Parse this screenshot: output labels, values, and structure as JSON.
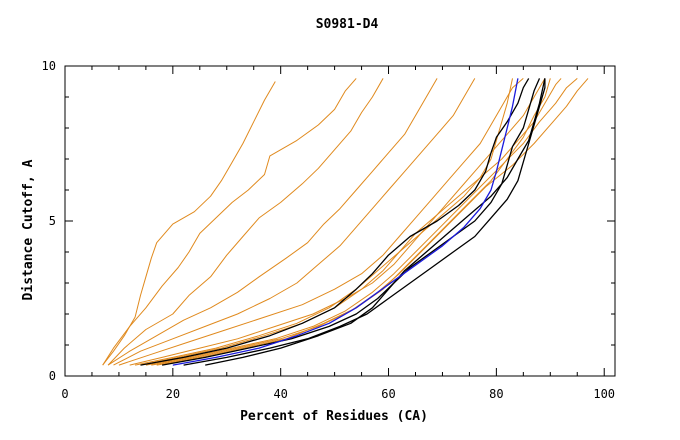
{
  "chart_data": {
    "type": "line",
    "title": "S0981-D4",
    "xlabel": "Percent of Residues (CA)",
    "ylabel": "Distance Cutoff, A",
    "xlim": [
      0,
      102
    ],
    "ylim": [
      0,
      10
    ],
    "xticks": [
      0,
      20,
      40,
      60,
      80,
      100
    ],
    "yticks": [
      0,
      5,
      10
    ],
    "grid": false,
    "legend": "none",
    "colors": {
      "orange": "#e08a1e",
      "black": "#000000",
      "blue": "#1a1adc"
    },
    "series": [
      {
        "color": "orange",
        "points": [
          [
            7,
            0.35
          ],
          [
            9,
            0.8
          ],
          [
            11,
            1.3
          ],
          [
            13,
            1.9
          ],
          [
            14,
            2.6
          ],
          [
            15,
            3.2
          ],
          [
            16,
            3.8
          ],
          [
            17,
            4.3
          ],
          [
            20,
            4.9
          ],
          [
            24,
            5.3
          ],
          [
            27,
            5.8
          ],
          [
            29,
            6.3
          ],
          [
            31,
            6.9
          ],
          [
            33,
            7.5
          ],
          [
            35,
            8.2
          ],
          [
            37,
            8.9
          ],
          [
            39,
            9.5
          ]
        ]
      },
      {
        "color": "orange",
        "points": [
          [
            7,
            0.35
          ],
          [
            9,
            0.9
          ],
          [
            12,
            1.6
          ],
          [
            15,
            2.2
          ],
          [
            18,
            2.9
          ],
          [
            21,
            3.5
          ],
          [
            23,
            4.0
          ],
          [
            25,
            4.6
          ],
          [
            28,
            5.1
          ],
          [
            31,
            5.6
          ],
          [
            34,
            6.0
          ],
          [
            37,
            6.5
          ],
          [
            38,
            7.1
          ],
          [
            43,
            7.6
          ],
          [
            47,
            8.1
          ],
          [
            50,
            8.6
          ],
          [
            52,
            9.2
          ],
          [
            54,
            9.6
          ]
        ]
      },
      {
        "color": "orange",
        "points": [
          [
            8,
            0.35
          ],
          [
            11,
            0.9
          ],
          [
            15,
            1.5
          ],
          [
            20,
            2.0
          ],
          [
            23,
            2.6
          ],
          [
            27,
            3.2
          ],
          [
            30,
            3.9
          ],
          [
            33,
            4.5
          ],
          [
            36,
            5.1
          ],
          [
            40,
            5.6
          ],
          [
            44,
            6.2
          ],
          [
            47,
            6.7
          ],
          [
            50,
            7.3
          ],
          [
            53,
            7.9
          ],
          [
            55,
            8.5
          ],
          [
            57,
            9.0
          ],
          [
            59,
            9.6
          ]
        ]
      },
      {
        "color": "orange",
        "points": [
          [
            8,
            0.35
          ],
          [
            12,
            0.8
          ],
          [
            17,
            1.3
          ],
          [
            22,
            1.8
          ],
          [
            27,
            2.2
          ],
          [
            32,
            2.7
          ],
          [
            36,
            3.2
          ],
          [
            41,
            3.8
          ],
          [
            45,
            4.3
          ],
          [
            48,
            4.9
          ],
          [
            51,
            5.4
          ],
          [
            54,
            6.0
          ],
          [
            57,
            6.6
          ],
          [
            60,
            7.2
          ],
          [
            63,
            7.8
          ],
          [
            65,
            8.4
          ],
          [
            67,
            9.0
          ],
          [
            69,
            9.6
          ]
        ]
      },
      {
        "color": "orange",
        "points": [
          [
            9,
            0.35
          ],
          [
            14,
            0.8
          ],
          [
            20,
            1.2
          ],
          [
            26,
            1.6
          ],
          [
            32,
            2.0
          ],
          [
            38,
            2.5
          ],
          [
            43,
            3.0
          ],
          [
            47,
            3.6
          ],
          [
            51,
            4.2
          ],
          [
            54,
            4.8
          ],
          [
            57,
            5.4
          ],
          [
            60,
            6.0
          ],
          [
            63,
            6.6
          ],
          [
            66,
            7.2
          ],
          [
            69,
            7.8
          ],
          [
            72,
            8.4
          ],
          [
            74,
            9.0
          ],
          [
            76,
            9.6
          ]
        ]
      },
      {
        "color": "orange",
        "points": [
          [
            10,
            0.35
          ],
          [
            16,
            0.7
          ],
          [
            23,
            1.1
          ],
          [
            30,
            1.5
          ],
          [
            37,
            1.9
          ],
          [
            44,
            2.3
          ],
          [
            50,
            2.8
          ],
          [
            55,
            3.3
          ],
          [
            59,
            3.9
          ],
          [
            62,
            4.5
          ],
          [
            65,
            5.1
          ],
          [
            68,
            5.7
          ],
          [
            71,
            6.3
          ],
          [
            74,
            6.9
          ],
          [
            77,
            7.5
          ],
          [
            79,
            8.1
          ],
          [
            81,
            8.7
          ],
          [
            83,
            9.3
          ],
          [
            85,
            9.6
          ]
        ]
      },
      {
        "color": "orange",
        "points": [
          [
            12,
            0.35
          ],
          [
            18,
            0.6
          ],
          [
            25,
            0.9
          ],
          [
            32,
            1.2
          ],
          [
            39,
            1.6
          ],
          [
            46,
            2.0
          ],
          [
            52,
            2.5
          ],
          [
            57,
            3.0
          ],
          [
            61,
            3.6
          ],
          [
            64,
            4.2
          ],
          [
            67,
            4.8
          ],
          [
            70,
            5.4
          ],
          [
            73,
            6.0
          ],
          [
            76,
            6.6
          ],
          [
            79,
            7.2
          ],
          [
            82,
            7.8
          ],
          [
            85,
            8.4
          ],
          [
            87,
            9.0
          ],
          [
            89,
            9.6
          ]
        ]
      },
      {
        "color": "orange",
        "points": [
          [
            14,
            0.35
          ],
          [
            21,
            0.6
          ],
          [
            29,
            0.9
          ],
          [
            37,
            1.3
          ],
          [
            44,
            1.7
          ],
          [
            50,
            2.2
          ],
          [
            55,
            2.8
          ],
          [
            59,
            3.4
          ],
          [
            62,
            4.0
          ],
          [
            65,
            4.6
          ],
          [
            69,
            5.2
          ],
          [
            73,
            5.8
          ],
          [
            77,
            6.4
          ],
          [
            81,
            7.0
          ],
          [
            84,
            7.6
          ],
          [
            87,
            8.2
          ],
          [
            89,
            8.8
          ],
          [
            91,
            9.4
          ],
          [
            92,
            9.6
          ]
        ]
      },
      {
        "color": "orange",
        "points": [
          [
            15,
            0.35
          ],
          [
            23,
            0.6
          ],
          [
            31,
            0.9
          ],
          [
            39,
            1.2
          ],
          [
            46,
            1.6
          ],
          [
            52,
            2.1
          ],
          [
            57,
            2.7
          ],
          [
            61,
            3.3
          ],
          [
            65,
            4.0
          ],
          [
            69,
            4.7
          ],
          [
            73,
            5.4
          ],
          [
            77,
            6.1
          ],
          [
            81,
            6.8
          ],
          [
            85,
            7.5
          ],
          [
            88,
            8.2
          ],
          [
            91,
            8.8
          ],
          [
            93,
            9.3
          ],
          [
            95,
            9.6
          ]
        ]
      },
      {
        "color": "orange",
        "points": [
          [
            16,
            0.35
          ],
          [
            24,
            0.6
          ],
          [
            32,
            0.9
          ],
          [
            40,
            1.2
          ],
          [
            47,
            1.6
          ],
          [
            53,
            2.1
          ],
          [
            58,
            2.7
          ],
          [
            62,
            3.3
          ],
          [
            66,
            4.0
          ],
          [
            70,
            4.7
          ],
          [
            74,
            5.4
          ],
          [
            78,
            6.1
          ],
          [
            83,
            6.8
          ],
          [
            87,
            7.5
          ],
          [
            90,
            8.1
          ],
          [
            93,
            8.7
          ],
          [
            95,
            9.2
          ],
          [
            97,
            9.6
          ]
        ]
      },
      {
        "color": "orange",
        "points": [
          [
            17,
            0.35
          ],
          [
            25,
            0.6
          ],
          [
            33,
            0.9
          ],
          [
            41,
            1.2
          ],
          [
            48,
            1.7
          ],
          [
            54,
            2.2
          ],
          [
            59,
            2.8
          ],
          [
            63,
            3.5
          ],
          [
            67,
            4.2
          ],
          [
            71,
            4.9
          ],
          [
            75,
            5.6
          ],
          [
            79,
            6.3
          ],
          [
            82,
            7.0
          ],
          [
            85,
            7.7
          ],
          [
            87,
            8.4
          ],
          [
            89,
            9.0
          ],
          [
            90,
            9.6
          ]
        ]
      },
      {
        "color": "orange",
        "points": [
          [
            13,
            0.35
          ],
          [
            20,
            0.6
          ],
          [
            28,
            0.9
          ],
          [
            36,
            1.3
          ],
          [
            43,
            1.7
          ],
          [
            49,
            2.2
          ],
          [
            54,
            2.8
          ],
          [
            58,
            3.4
          ],
          [
            62,
            4.0
          ],
          [
            66,
            4.6
          ],
          [
            70,
            5.2
          ],
          [
            74,
            5.8
          ],
          [
            77,
            6.4
          ],
          [
            79,
            7.0
          ],
          [
            80,
            7.6
          ],
          [
            81,
            8.2
          ],
          [
            82,
            8.8
          ],
          [
            83,
            9.6
          ]
        ]
      },
      {
        "color": "black",
        "points": [
          [
            14,
            0.35
          ],
          [
            22,
            0.6
          ],
          [
            30,
            0.9
          ],
          [
            38,
            1.3
          ],
          [
            44,
            1.7
          ],
          [
            50,
            2.2
          ],
          [
            54,
            2.8
          ],
          [
            57,
            3.3
          ],
          [
            60,
            3.9
          ],
          [
            64,
            4.5
          ],
          [
            69,
            5.0
          ],
          [
            73,
            5.5
          ],
          [
            76,
            6.0
          ],
          [
            78,
            6.6
          ],
          [
            79,
            7.2
          ],
          [
            80,
            7.7
          ],
          [
            82,
            8.2
          ],
          [
            84,
            8.8
          ],
          [
            85,
            9.3
          ],
          [
            86,
            9.6
          ]
        ]
      },
      {
        "color": "black",
        "points": [
          [
            18,
            0.35
          ],
          [
            26,
            0.6
          ],
          [
            34,
            0.9
          ],
          [
            42,
            1.2
          ],
          [
            49,
            1.6
          ],
          [
            54,
            2.0
          ],
          [
            58,
            2.5
          ],
          [
            61,
            3.0
          ],
          [
            64,
            3.5
          ],
          [
            68,
            4.0
          ],
          [
            72,
            4.5
          ],
          [
            76,
            5.0
          ],
          [
            79,
            5.6
          ],
          [
            81,
            6.2
          ],
          [
            82,
            6.8
          ],
          [
            83,
            7.4
          ],
          [
            85,
            8.0
          ],
          [
            86,
            8.6
          ],
          [
            87,
            9.2
          ],
          [
            88,
            9.6
          ]
        ]
      },
      {
        "color": "black",
        "points": [
          [
            22,
            0.35
          ],
          [
            30,
            0.6
          ],
          [
            38,
            0.9
          ],
          [
            45,
            1.2
          ],
          [
            51,
            1.6
          ],
          [
            56,
            2.0
          ],
          [
            60,
            2.5
          ],
          [
            64,
            3.0
          ],
          [
            68,
            3.5
          ],
          [
            72,
            4.0
          ],
          [
            76,
            4.5
          ],
          [
            79,
            5.1
          ],
          [
            82,
            5.7
          ],
          [
            84,
            6.3
          ],
          [
            85,
            6.9
          ],
          [
            86,
            7.5
          ],
          [
            87,
            8.1
          ],
          [
            88,
            8.7
          ],
          [
            89,
            9.3
          ],
          [
            89,
            9.6
          ]
        ]
      },
      {
        "color": "black",
        "points": [
          [
            26,
            0.35
          ],
          [
            33,
            0.6
          ],
          [
            40,
            0.9
          ],
          [
            47,
            1.3
          ],
          [
            53,
            1.7
          ],
          [
            57,
            2.2
          ],
          [
            60,
            2.8
          ],
          [
            63,
            3.4
          ],
          [
            67,
            4.0
          ],
          [
            71,
            4.6
          ],
          [
            75,
            5.2
          ],
          [
            79,
            5.8
          ],
          [
            82,
            6.4
          ],
          [
            84,
            7.0
          ],
          [
            86,
            7.6
          ],
          [
            87,
            8.2
          ],
          [
            88,
            8.8
          ],
          [
            89,
            9.6
          ]
        ]
      },
      {
        "color": "blue",
        "points": [
          [
            20,
            0.35
          ],
          [
            28,
            0.6
          ],
          [
            36,
            0.9
          ],
          [
            43,
            1.3
          ],
          [
            49,
            1.7
          ],
          [
            54,
            2.2
          ],
          [
            58,
            2.7
          ],
          [
            62,
            3.2
          ],
          [
            66,
            3.7
          ],
          [
            70,
            4.2
          ],
          [
            74,
            4.8
          ],
          [
            77,
            5.4
          ],
          [
            79,
            6.0
          ],
          [
            80,
            6.6
          ],
          [
            81,
            7.3
          ],
          [
            82,
            8.0
          ],
          [
            83,
            8.7
          ],
          [
            84,
            9.6
          ]
        ]
      }
    ]
  }
}
